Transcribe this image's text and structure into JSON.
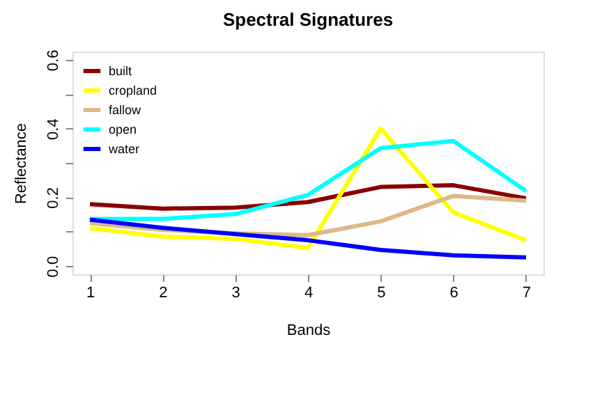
{
  "chart_data": {
    "type": "line",
    "title": "Spectral Signatures",
    "xlabel": "Bands",
    "ylabel": "Reflectance",
    "x": [
      1,
      2,
      3,
      4,
      5,
      6,
      7
    ],
    "series": [
      {
        "name": "built",
        "color": "#8b0000",
        "values": [
          0.18,
          0.167,
          0.17,
          0.186,
          0.23,
          0.235,
          0.197
        ]
      },
      {
        "name": "cropland",
        "color": "#ffff00",
        "values": [
          0.11,
          0.086,
          0.079,
          0.053,
          0.4,
          0.156,
          0.075
        ]
      },
      {
        "name": "fallow",
        "color": "#deb887",
        "values": [
          0.125,
          0.105,
          0.095,
          0.09,
          0.13,
          0.204,
          0.19
        ]
      },
      {
        "name": "open",
        "color": "#00ffff",
        "values": [
          0.137,
          0.137,
          0.151,
          0.207,
          0.343,
          0.364,
          0.218
        ]
      },
      {
        "name": "water",
        "color": "#0000ff",
        "values": [
          0.135,
          0.111,
          0.093,
          0.075,
          0.047,
          0.031,
          0.025
        ]
      }
    ],
    "xlim": [
      0.76,
      7.24
    ],
    "xticks": [
      1,
      2,
      3,
      4,
      5,
      6,
      7
    ],
    "ylim": [
      -0.024,
      0.624
    ],
    "yticks": [
      {
        "value": 0.0,
        "label": "0.0"
      },
      {
        "value": 0.1,
        "label": null
      },
      {
        "value": 0.2,
        "label": "0.2"
      },
      {
        "value": 0.3,
        "label": null
      },
      {
        "value": 0.4,
        "label": "0.4"
      },
      {
        "value": 0.5,
        "label": null
      },
      {
        "value": 0.6,
        "label": "0.6"
      }
    ],
    "legend": "top left",
    "grid": false,
    "marker": "none",
    "line_style": "solid"
  }
}
